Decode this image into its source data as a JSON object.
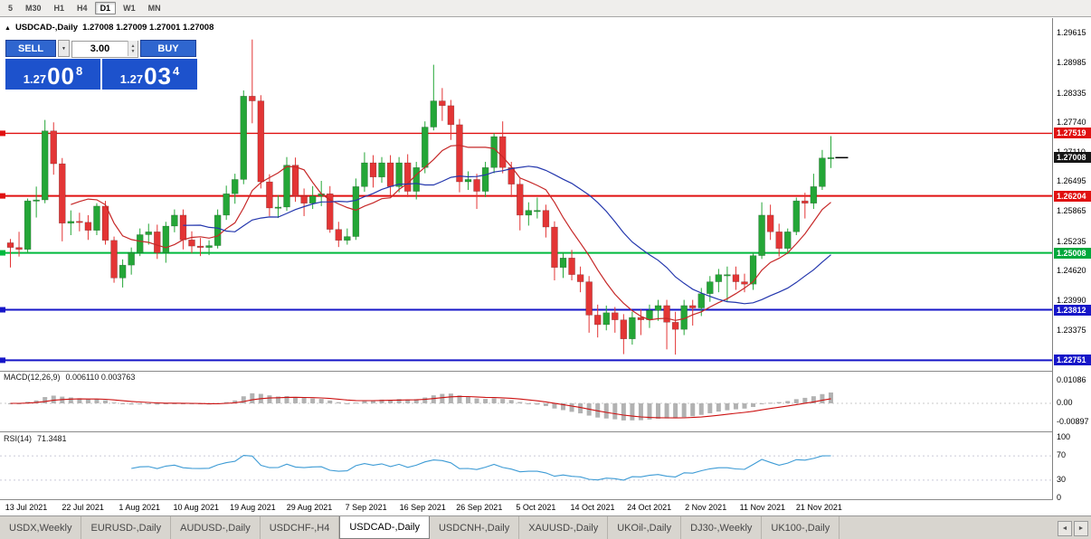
{
  "toolbar": {
    "periods": [
      "5",
      "M30",
      "H1",
      "H4",
      "D1",
      "W1",
      "MN"
    ],
    "active": "D1"
  },
  "icons": {
    "collapse": "▲",
    "dropdown": "▼",
    "spin_up": "▲",
    "spin_down": "▼",
    "tab_left": "◄",
    "tab_right": "►"
  },
  "chart": {
    "header": {
      "symbol": "USDCAD-,Daily",
      "ohlc": "1.27008 1.27009 1.27001 1.27008"
    },
    "trade_panel": {
      "sell_label": "SELL",
      "buy_label": "BUY",
      "volume": "3.00",
      "bid": {
        "prefix": "1.27",
        "big": "00",
        "sup": "8"
      },
      "ask": {
        "prefix": "1.27",
        "big": "03",
        "sup": "4"
      }
    },
    "price_axis": {
      "ticks": [
        "1.29615",
        "1.28985",
        "1.28335",
        "1.27740",
        "1.27110",
        "1.26495",
        "1.25865",
        "1.25235",
        "1.24620",
        "1.23990",
        "1.23375"
      ],
      "tagged": [
        {
          "text": "1.27519",
          "color": "#e01010"
        },
        {
          "text": "1.27008",
          "color": "#151515"
        },
        {
          "text": "1.26204",
          "color": "#e01010"
        },
        {
          "text": "1.25008",
          "color": "#00a83c"
        },
        {
          "text": "1.23812",
          "color": "#1616c8"
        },
        {
          "text": "1.22751",
          "color": "#1616c8"
        }
      ]
    },
    "dates": [
      "13 Jul 2021",
      "22 Jul 2021",
      "1 Aug 2021",
      "10 Aug 2021",
      "19 Aug 2021",
      "29 Aug 2021",
      "7 Sep 2021",
      "16 Sep 2021",
      "26 Sep 2021",
      "5 Oct 2021",
      "14 Oct 2021",
      "24 Oct 2021",
      "2 Nov 2021",
      "11 Nov 2021",
      "21 Nov 2021"
    ]
  },
  "chart_data": {
    "type": "candlestick",
    "symbol": "USDCAD",
    "timeframe": "Daily",
    "price_range": [
      1.2256,
      1.2994
    ],
    "current_price": 1.27008,
    "colors": {
      "up": "#24a637",
      "down": "#e33535",
      "ma_fast": "#c62828",
      "ma_slow": "#2336ad",
      "macd_hist": "#b2b2b2",
      "macd_signal": "#cc1111",
      "rsi": "#3d9bd5"
    },
    "ma": [
      {
        "period": 8,
        "color": "#c62828"
      },
      {
        "period": 21,
        "color": "#2336ad"
      }
    ],
    "levels": [
      {
        "price": 1.27519,
        "color": "#e01010",
        "width": 1.3
      },
      {
        "price": 1.26204,
        "color": "#e01010",
        "width": 2
      },
      {
        "price": 1.25008,
        "color": "#00b93e",
        "width": 2
      },
      {
        "price": 1.23812,
        "color": "#1616c8",
        "width": 2
      },
      {
        "price": 1.22751,
        "color": "#1616c8",
        "width": 2
      }
    ],
    "indicators": {
      "macd": {
        "label": "MACD(12,26,9)",
        "values": "0.006110 0.003763",
        "axis": [
          "0.01086",
          "0.00",
          "-0.00897"
        ]
      },
      "rsi": {
        "label": "RSI(14)",
        "value": "71.3481",
        "axis": [
          "100",
          "70",
          "30",
          "0"
        ],
        "levels": [
          70,
          30
        ]
      }
    },
    "candles": [
      [
        1.2522,
        1.253,
        1.247,
        1.2512
      ],
      [
        1.2512,
        1.2545,
        1.2493,
        1.2508
      ],
      [
        1.2508,
        1.2615,
        1.25,
        1.261
      ],
      [
        1.261,
        1.264,
        1.2575,
        1.2612
      ],
      [
        1.2612,
        1.278,
        1.2605,
        1.2757
      ],
      [
        1.2757,
        1.2775,
        1.2665,
        1.2688
      ],
      [
        1.2688,
        1.27,
        1.2525,
        1.2563
      ],
      [
        1.2563,
        1.259,
        1.2538,
        1.2567
      ],
      [
        1.2567,
        1.2585,
        1.2546,
        1.2565
      ],
      [
        1.2565,
        1.258,
        1.2528,
        1.2548
      ],
      [
        1.2548,
        1.2605,
        1.2538,
        1.2599
      ],
      [
        1.2599,
        1.261,
        1.2518,
        1.2527
      ],
      [
        1.2527,
        1.2535,
        1.2438,
        1.2448
      ],
      [
        1.2448,
        1.2487,
        1.2428,
        1.2475
      ],
      [
        1.2475,
        1.2512,
        1.2455,
        1.2501
      ],
      [
        1.2501,
        1.2552,
        1.2494,
        1.2539
      ],
      [
        1.2539,
        1.2562,
        1.2518,
        1.2545
      ],
      [
        1.2545,
        1.256,
        1.2488,
        1.2501
      ],
      [
        1.2501,
        1.2566,
        1.248,
        1.2557
      ],
      [
        1.2557,
        1.2592,
        1.2544,
        1.258
      ],
      [
        1.258,
        1.2592,
        1.2508,
        1.2528
      ],
      [
        1.2528,
        1.2546,
        1.25,
        1.2515
      ],
      [
        1.2515,
        1.2532,
        1.2494,
        1.2512
      ],
      [
        1.2512,
        1.2527,
        1.2496,
        1.2516
      ],
      [
        1.2516,
        1.2592,
        1.251,
        1.258
      ],
      [
        1.258,
        1.2642,
        1.257,
        1.2625
      ],
      [
        1.2625,
        1.2667,
        1.2604,
        1.2655
      ],
      [
        1.2655,
        1.2842,
        1.2645,
        1.283
      ],
      [
        1.283,
        1.2949,
        1.2773,
        1.282
      ],
      [
        1.282,
        1.2832,
        1.2636,
        1.265
      ],
      [
        1.265,
        1.2666,
        1.2578,
        1.2595
      ],
      [
        1.2595,
        1.2622,
        1.2574,
        1.2597
      ],
      [
        1.2597,
        1.2702,
        1.2589,
        1.2685
      ],
      [
        1.2685,
        1.2701,
        1.2608,
        1.262
      ],
      [
        1.262,
        1.2636,
        1.2578,
        1.2605
      ],
      [
        1.2605,
        1.2641,
        1.2593,
        1.262
      ],
      [
        1.262,
        1.2652,
        1.2599,
        1.2625
      ],
      [
        1.2625,
        1.2641,
        1.2543,
        1.255
      ],
      [
        1.255,
        1.2566,
        1.2513,
        1.2527
      ],
      [
        1.2527,
        1.2552,
        1.2518,
        1.2535
      ],
      [
        1.2535,
        1.2657,
        1.2528,
        1.264
      ],
      [
        1.264,
        1.2712,
        1.2629,
        1.269
      ],
      [
        1.269,
        1.2706,
        1.2638,
        1.266
      ],
      [
        1.266,
        1.2702,
        1.2648,
        1.269
      ],
      [
        1.269,
        1.2706,
        1.2622,
        1.264
      ],
      [
        1.264,
        1.2702,
        1.2628,
        1.269
      ],
      [
        1.269,
        1.2708,
        1.2618,
        1.263
      ],
      [
        1.263,
        1.2692,
        1.2613,
        1.268
      ],
      [
        1.268,
        1.2777,
        1.2668,
        1.2765
      ],
      [
        1.2765,
        1.2896,
        1.2758,
        1.282
      ],
      [
        1.282,
        1.2847,
        1.2778,
        1.281
      ],
      [
        1.281,
        1.2822,
        1.2738,
        1.277
      ],
      [
        1.277,
        1.2782,
        1.2628,
        1.265
      ],
      [
        1.265,
        1.2672,
        1.2633,
        1.2655
      ],
      [
        1.2655,
        1.2667,
        1.2593,
        1.263
      ],
      [
        1.263,
        1.2692,
        1.2618,
        1.268
      ],
      [
        1.268,
        1.2752,
        1.2668,
        1.2745
      ],
      [
        1.2745,
        1.2777,
        1.2668,
        1.268
      ],
      [
        1.268,
        1.2692,
        1.2618,
        1.2645
      ],
      [
        1.2645,
        1.2657,
        1.2548,
        1.258
      ],
      [
        1.258,
        1.2607,
        1.2558,
        1.259
      ],
      [
        1.259,
        1.2617,
        1.2573,
        1.259
      ],
      [
        1.259,
        1.2602,
        1.2533,
        1.2555
      ],
      [
        1.2555,
        1.2567,
        1.2443,
        1.247
      ],
      [
        1.247,
        1.2502,
        1.2448,
        1.249
      ],
      [
        1.249,
        1.2507,
        1.2443,
        1.2455
      ],
      [
        1.2455,
        1.2472,
        1.2418,
        1.244
      ],
      [
        1.244,
        1.2452,
        1.2333,
        1.237
      ],
      [
        1.237,
        1.2392,
        1.2323,
        1.235
      ],
      [
        1.235,
        1.239,
        1.2338,
        1.2375
      ],
      [
        1.2375,
        1.2387,
        1.2333,
        1.236
      ],
      [
        1.236,
        1.2372,
        1.2288,
        1.232
      ],
      [
        1.232,
        1.2377,
        1.2308,
        1.2365
      ],
      [
        1.2365,
        1.2382,
        1.2328,
        1.236
      ],
      [
        1.236,
        1.2392,
        1.2343,
        1.238
      ],
      [
        1.238,
        1.2402,
        1.2358,
        1.239
      ],
      [
        1.239,
        1.2402,
        1.2298,
        1.2355
      ],
      [
        1.2355,
        1.2377,
        1.2287,
        1.234
      ],
      [
        1.234,
        1.2402,
        1.2328,
        1.239
      ],
      [
        1.239,
        1.2402,
        1.2348,
        1.2385
      ],
      [
        1.2385,
        1.2427,
        1.2368,
        1.2415
      ],
      [
        1.2415,
        1.2452,
        1.2398,
        1.244
      ],
      [
        1.244,
        1.2467,
        1.2418,
        1.2455
      ],
      [
        1.2455,
        1.2472,
        1.2398,
        1.2455
      ],
      [
        1.2455,
        1.2472,
        1.2423,
        1.244
      ],
      [
        1.244,
        1.2457,
        1.2418,
        1.2435
      ],
      [
        1.2435,
        1.2502,
        1.2423,
        1.2495
      ],
      [
        1.2495,
        1.2607,
        1.2488,
        1.258
      ],
      [
        1.258,
        1.2602,
        1.2528,
        1.2545
      ],
      [
        1.2545,
        1.2562,
        1.2493,
        1.251
      ],
      [
        1.251,
        1.2552,
        1.2498,
        1.2545
      ],
      [
        1.2545,
        1.2617,
        1.2538,
        1.261
      ],
      [
        1.261,
        1.2627,
        1.2573,
        1.2605
      ],
      [
        1.2605,
        1.2667,
        1.2593,
        1.264
      ],
      [
        1.264,
        1.2717,
        1.2633,
        1.27
      ],
      [
        1.27,
        1.2746,
        1.2679,
        1.2701
      ]
    ]
  },
  "tabs": {
    "items": [
      "USDX,Weekly",
      "EURUSD-,Daily",
      "AUDUSD-,Daily",
      "USDCHF-,H4",
      "USDCAD-,Daily",
      "USDCNH-,Daily",
      "XAUUSD-,Daily",
      "UKOil-,Daily",
      "DJ30-,Weekly",
      "UK100-,Daily"
    ],
    "active_index": 4
  }
}
